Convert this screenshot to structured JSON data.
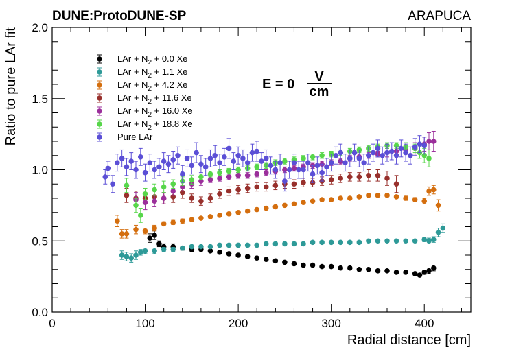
{
  "header": {
    "experiment": "DUNE:ProtoDUNE-SP",
    "detector": "ARAPUCA"
  },
  "field_label": {
    "prefix": "E = 0",
    "numerator": "V",
    "denominator": "cm"
  },
  "chart_data": {
    "type": "scatter",
    "title": "",
    "xlabel": "Radial distance [cm]",
    "ylabel": "Ratio to pure LAr fit",
    "xlim": [
      0,
      450
    ],
    "ylim": [
      0.0,
      2.0
    ],
    "x_ticks": [
      "0",
      "100",
      "200",
      "300",
      "400"
    ],
    "y_ticks": [
      "0.0",
      "0.5",
      "1.0",
      "1.5",
      "2.0"
    ],
    "legend_position": "top-left",
    "series": [
      {
        "name": "LAr + N2 + 0.0 Xe",
        "legend": {
          "pre": "LAr + N",
          "sub": "2",
          "post": " + 0.0 Xe"
        },
        "color": "#000000",
        "x": [
          105,
          110,
          115,
          120,
          130,
          140,
          150,
          160,
          170,
          180,
          190,
          200,
          210,
          220,
          230,
          240,
          250,
          260,
          270,
          280,
          290,
          300,
          310,
          320,
          330,
          340,
          350,
          360,
          370,
          380,
          390,
          395,
          400,
          405,
          410
        ],
        "y": [
          0.52,
          0.54,
          0.48,
          0.46,
          0.46,
          0.45,
          0.44,
          0.44,
          0.43,
          0.42,
          0.41,
          0.4,
          0.39,
          0.38,
          0.37,
          0.36,
          0.35,
          0.34,
          0.33,
          0.33,
          0.32,
          0.32,
          0.31,
          0.31,
          0.3,
          0.3,
          0.29,
          0.29,
          0.28,
          0.28,
          0.27,
          0.26,
          0.28,
          0.29,
          0.31
        ],
        "err": [
          0.03,
          0.03,
          0.02,
          0.02,
          0.02,
          0.015,
          0.015,
          0.01,
          0.01,
          0.01,
          0.01,
          0.01,
          0.01,
          0.01,
          0.01,
          0.01,
          0.01,
          0.01,
          0.01,
          0.01,
          0.01,
          0.01,
          0.01,
          0.01,
          0.01,
          0.01,
          0.01,
          0.01,
          0.01,
          0.01,
          0.01,
          0.01,
          0.015,
          0.02,
          0.02
        ]
      },
      {
        "name": "LAr + N2 + 1.1 Xe",
        "legend": {
          "pre": "LAr + N",
          "sub": "2",
          "post": " + 1.1 Xe"
        },
        "color": "#2e9a98",
        "x": [
          75,
          80,
          85,
          90,
          95,
          100,
          110,
          120,
          130,
          140,
          150,
          160,
          170,
          180,
          190,
          200,
          210,
          220,
          230,
          240,
          250,
          260,
          270,
          280,
          290,
          300,
          310,
          320,
          330,
          340,
          350,
          360,
          370,
          380,
          390,
          400,
          405,
          410,
          415,
          420
        ],
        "y": [
          0.4,
          0.39,
          0.38,
          0.4,
          0.42,
          0.43,
          0.43,
          0.44,
          0.44,
          0.45,
          0.46,
          0.46,
          0.46,
          0.47,
          0.47,
          0.47,
          0.47,
          0.47,
          0.48,
          0.48,
          0.48,
          0.48,
          0.48,
          0.49,
          0.49,
          0.49,
          0.49,
          0.49,
          0.49,
          0.5,
          0.5,
          0.5,
          0.5,
          0.5,
          0.5,
          0.51,
          0.5,
          0.51,
          0.56,
          0.59
        ],
        "err": [
          0.03,
          0.03,
          0.03,
          0.03,
          0.02,
          0.02,
          0.02,
          0.015,
          0.015,
          0.015,
          0.01,
          0.01,
          0.01,
          0.01,
          0.01,
          0.01,
          0.01,
          0.01,
          0.01,
          0.01,
          0.01,
          0.01,
          0.01,
          0.01,
          0.01,
          0.01,
          0.01,
          0.01,
          0.01,
          0.01,
          0.01,
          0.01,
          0.01,
          0.01,
          0.01,
          0.015,
          0.02,
          0.02,
          0.03,
          0.03
        ]
      },
      {
        "name": "LAr + N2 + 4.2 Xe",
        "legend": {
          "pre": "LAr + N",
          "sub": "2",
          "post": " + 4.2 Xe"
        },
        "color": "#d46e0e",
        "x": [
          70,
          75,
          80,
          90,
          100,
          110,
          120,
          130,
          140,
          150,
          160,
          170,
          180,
          190,
          200,
          210,
          220,
          230,
          240,
          250,
          260,
          270,
          280,
          290,
          300,
          310,
          320,
          330,
          340,
          350,
          360,
          370,
          380,
          390,
          400,
          405,
          410,
          415
        ],
        "y": [
          0.64,
          0.55,
          0.55,
          0.58,
          0.57,
          0.59,
          0.62,
          0.63,
          0.64,
          0.65,
          0.66,
          0.67,
          0.68,
          0.69,
          0.7,
          0.71,
          0.72,
          0.73,
          0.74,
          0.75,
          0.76,
          0.77,
          0.78,
          0.79,
          0.79,
          0.8,
          0.8,
          0.81,
          0.82,
          0.82,
          0.82,
          0.81,
          0.8,
          0.79,
          0.78,
          0.85,
          0.86,
          0.75
        ],
        "err": [
          0.04,
          0.03,
          0.03,
          0.03,
          0.02,
          0.02,
          0.015,
          0.015,
          0.015,
          0.01,
          0.01,
          0.01,
          0.01,
          0.01,
          0.01,
          0.01,
          0.01,
          0.01,
          0.01,
          0.01,
          0.01,
          0.01,
          0.01,
          0.01,
          0.01,
          0.01,
          0.01,
          0.01,
          0.01,
          0.01,
          0.01,
          0.01,
          0.015,
          0.015,
          0.02,
          0.03,
          0.03,
          0.04
        ]
      },
      {
        "name": "LAr + N2 + 11.6 Xe",
        "legend": {
          "pre": "LAr + N",
          "sub": "2",
          "post": " + 11.6 Xe"
        },
        "color": "#98302c",
        "x": [
          80,
          90,
          100,
          110,
          120,
          130,
          140,
          150,
          160,
          170,
          180,
          190,
          200,
          210,
          220,
          230,
          240,
          250,
          260,
          270,
          280,
          290,
          300,
          310,
          320,
          330,
          340,
          350,
          360,
          370
        ],
        "y": [
          0.82,
          0.8,
          0.8,
          0.81,
          0.8,
          0.81,
          0.84,
          0.8,
          0.78,
          0.8,
          0.83,
          0.85,
          0.86,
          0.87,
          0.88,
          0.88,
          0.89,
          0.9,
          0.9,
          0.91,
          0.91,
          0.92,
          0.93,
          0.94,
          0.95,
          0.95,
          0.96,
          0.96,
          0.94,
          0.9
        ],
        "err": [
          0.05,
          0.05,
          0.04,
          0.04,
          0.04,
          0.04,
          0.04,
          0.03,
          0.03,
          0.03,
          0.03,
          0.03,
          0.03,
          0.03,
          0.03,
          0.03,
          0.03,
          0.03,
          0.03,
          0.03,
          0.03,
          0.03,
          0.03,
          0.03,
          0.03,
          0.03,
          0.04,
          0.04,
          0.05,
          0.06
        ]
      },
      {
        "name": "LAr + N2 + 16.0 Xe",
        "legend": {
          "pre": "LAr + N",
          "sub": "2",
          "post": " + 16.0 Xe"
        },
        "color": "#9b2f9b",
        "x": [
          90,
          100,
          110,
          120,
          130,
          140,
          150,
          160,
          170,
          180,
          190,
          200,
          210,
          220,
          230,
          240,
          250,
          260,
          270,
          280,
          290,
          300,
          310,
          320,
          330,
          340,
          350,
          360,
          370,
          380,
          390,
          400,
          405,
          410
        ],
        "y": [
          0.79,
          0.77,
          0.78,
          0.8,
          0.85,
          0.88,
          0.9,
          0.92,
          0.93,
          0.94,
          0.95,
          0.96,
          0.96,
          0.97,
          0.98,
          0.99,
          1.0,
          1.01,
          1.02,
          1.03,
          1.04,
          1.05,
          1.06,
          1.08,
          1.09,
          1.1,
          1.11,
          1.12,
          1.13,
          1.14,
          1.15,
          1.18,
          1.2,
          1.2
        ],
        "err": [
          0.05,
          0.05,
          0.04,
          0.04,
          0.03,
          0.03,
          0.03,
          0.03,
          0.02,
          0.02,
          0.02,
          0.02,
          0.02,
          0.02,
          0.02,
          0.02,
          0.02,
          0.02,
          0.02,
          0.02,
          0.02,
          0.02,
          0.02,
          0.02,
          0.02,
          0.02,
          0.02,
          0.03,
          0.03,
          0.03,
          0.04,
          0.05,
          0.06,
          0.07
        ]
      },
      {
        "name": "LAr + N2 + 18.8 Xe",
        "legend": {
          "pre": "LAr + N",
          "sub": "2",
          "post": " + 18.8 Xe"
        },
        "color": "#57d64a",
        "x": [
          80,
          90,
          95,
          100,
          110,
          120,
          130,
          140,
          150,
          160,
          170,
          180,
          190,
          200,
          210,
          220,
          230,
          240,
          250,
          260,
          270,
          280,
          290,
          300,
          310,
          320,
          330,
          340,
          350,
          360,
          370,
          380,
          390,
          395,
          400,
          405
        ],
        "y": [
          0.89,
          0.75,
          0.68,
          0.83,
          0.86,
          0.88,
          0.9,
          0.92,
          0.93,
          0.95,
          0.97,
          0.98,
          0.99,
          1.0,
          1.01,
          1.02,
          1.03,
          1.05,
          1.06,
          1.07,
          1.08,
          1.09,
          1.1,
          1.11,
          1.12,
          1.13,
          1.14,
          1.15,
          1.16,
          1.17,
          1.17,
          1.16,
          1.15,
          1.12,
          1.1,
          1.08
        ],
        "err": [
          0.05,
          0.05,
          0.05,
          0.04,
          0.04,
          0.04,
          0.03,
          0.03,
          0.03,
          0.02,
          0.02,
          0.02,
          0.02,
          0.02,
          0.02,
          0.02,
          0.02,
          0.02,
          0.02,
          0.02,
          0.02,
          0.02,
          0.02,
          0.02,
          0.02,
          0.02,
          0.02,
          0.02,
          0.02,
          0.02,
          0.02,
          0.03,
          0.03,
          0.04,
          0.05,
          0.06
        ]
      },
      {
        "name": "Pure LAr",
        "legend": {
          "pre": "Pure LAr",
          "sub": "",
          "post": ""
        },
        "color": "#5b4fd6",
        "x": [
          57,
          60,
          65,
          70,
          75,
          80,
          85,
          90,
          95,
          100,
          105,
          110,
          115,
          120,
          125,
          130,
          135,
          140,
          145,
          150,
          155,
          160,
          165,
          170,
          175,
          180,
          185,
          190,
          195,
          200,
          205,
          210,
          215,
          220,
          225,
          230,
          235,
          240,
          245,
          250,
          255,
          260,
          265,
          270,
          275,
          280,
          285,
          290,
          295,
          300,
          305,
          310,
          315,
          320,
          325,
          330,
          335,
          340,
          345,
          350,
          355,
          360,
          365,
          370,
          375,
          380,
          385,
          390,
          395,
          400
        ],
        "y": [
          0.95,
          1.01,
          0.9,
          1.05,
          1.08,
          1.02,
          1.06,
          1.0,
          1.09,
          0.98,
          1.05,
          1.0,
          1.02,
          1.06,
          1.04,
          1.07,
          1.1,
          0.97,
          1.08,
          1.03,
          1.12,
          1.04,
          1.02,
          1.08,
          1.1,
          1.05,
          1.09,
          1.15,
          1.06,
          1.1,
          1.08,
          1.05,
          1.12,
          1.13,
          1.06,
          1.08,
          1.03,
          1.0,
          1.05,
          0.92,
          1.0,
          1.05,
          1.0,
          1.0,
          1.05,
          0.97,
          1.03,
          0.98,
          1.02,
          1.05,
          1.1,
          1.12,
          1.05,
          1.08,
          1.12,
          1.08,
          1.05,
          1.1,
          1.12,
          1.15,
          1.1,
          1.12,
          1.13,
          1.1,
          1.15,
          1.12,
          1.1,
          1.16,
          1.18,
          1.17
        ],
        "err": [
          0.05,
          0.05,
          0.06,
          0.06,
          0.06,
          0.06,
          0.06,
          0.06,
          0.06,
          0.06,
          0.06,
          0.06,
          0.06,
          0.06,
          0.06,
          0.06,
          0.06,
          0.06,
          0.06,
          0.06,
          0.07,
          0.06,
          0.06,
          0.06,
          0.07,
          0.06,
          0.06,
          0.07,
          0.06,
          0.06,
          0.06,
          0.06,
          0.06,
          0.07,
          0.06,
          0.06,
          0.06,
          0.06,
          0.06,
          0.07,
          0.06,
          0.06,
          0.06,
          0.06,
          0.06,
          0.06,
          0.06,
          0.06,
          0.06,
          0.06,
          0.06,
          0.06,
          0.06,
          0.06,
          0.06,
          0.06,
          0.06,
          0.06,
          0.06,
          0.06,
          0.06,
          0.06,
          0.06,
          0.06,
          0.06,
          0.06,
          0.06,
          0.06,
          0.06,
          0.06
        ]
      }
    ]
  }
}
